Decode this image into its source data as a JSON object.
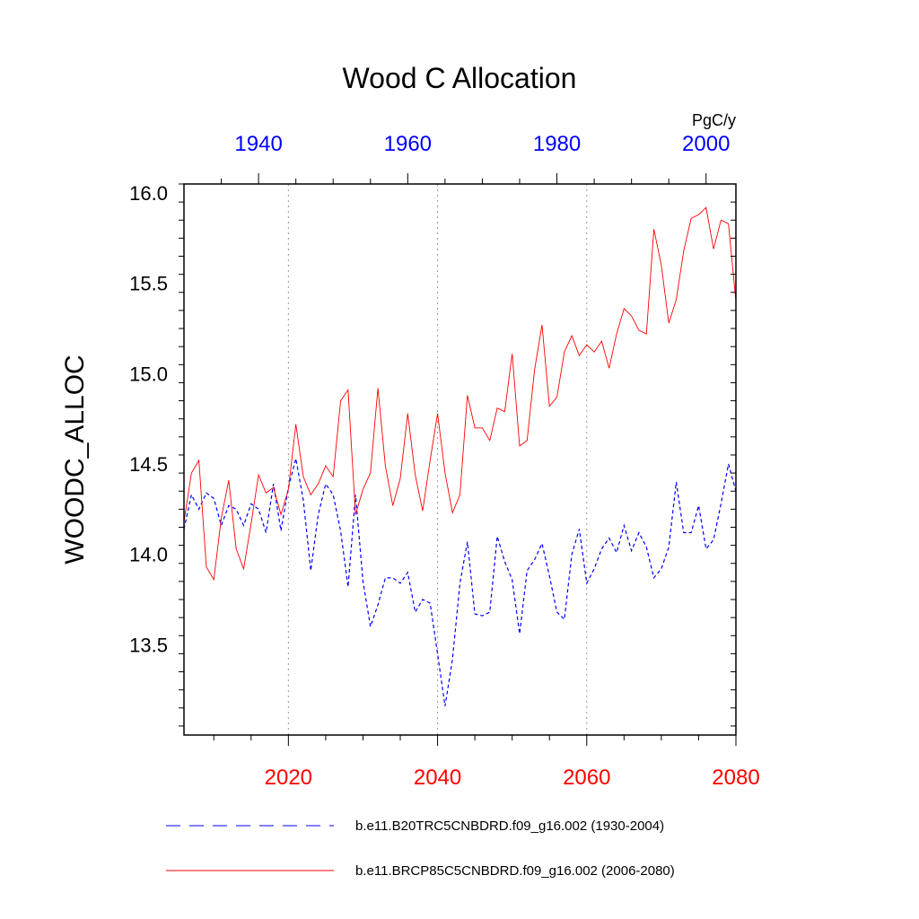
{
  "chart_data": {
    "type": "line",
    "title": "Wood C Allocation",
    "ylabel": "WOODC_ALLOC",
    "units": "PgC/y",
    "ylim": [
      13.0,
      16.05
    ],
    "yticks": [
      13.5,
      14.0,
      14.5,
      15.0,
      15.5,
      16.0
    ],
    "ytick_labels": [
      "13.5",
      "14.0",
      "14.5",
      "15.0",
      "15.5",
      "16.0"
    ],
    "bottom_axis": {
      "range": [
        2006,
        2080
      ],
      "ticks": [
        2020,
        2040,
        2060,
        2080
      ],
      "labels": [
        "2020",
        "2040",
        "2060",
        "2080"
      ],
      "color": "#ff0000"
    },
    "top_axis": {
      "range": [
        1930,
        2004
      ],
      "ticks": [
        1940,
        1960,
        1980,
        2000
      ],
      "labels": [
        "1940",
        "1960",
        "1980",
        "2000"
      ],
      "color": "#0000ff"
    },
    "grid_x": [
      2020,
      2040,
      2060
    ],
    "series": [
      {
        "name": "b.e11.B20TRC5CNBDRD.f09_g16.002 (1930-2004)",
        "axis": "top",
        "start": 1930,
        "color": "#0000ff",
        "style": "dashed",
        "values": [
          14.14,
          14.33,
          14.25,
          14.34,
          14.31,
          14.16,
          14.27,
          14.25,
          14.16,
          14.28,
          14.25,
          14.12,
          14.39,
          14.13,
          14.37,
          14.53,
          14.3,
          13.91,
          14.22,
          14.39,
          14.33,
          14.13,
          13.82,
          14.33,
          13.85,
          13.6,
          13.72,
          13.87,
          13.87,
          13.84,
          13.9,
          13.68,
          13.75,
          13.73,
          13.45,
          13.16,
          13.42,
          13.84,
          14.07,
          13.67,
          13.66,
          13.68,
          14.1,
          13.96,
          13.86,
          13.56,
          13.91,
          13.97,
          14.06,
          13.88,
          13.68,
          13.64,
          14.0,
          14.14,
          13.84,
          13.92,
          14.03,
          14.09,
          14.01,
          14.16,
          14.02,
          14.12,
          14.04,
          13.87,
          13.92,
          14.04,
          14.4,
          14.12,
          14.12,
          14.27,
          14.03,
          14.08,
          14.28,
          14.5,
          14.35
        ]
      },
      {
        "name": "b.e11.BRCP85C5CNBDRD.f09_g16.002 (2006-2080)",
        "axis": "bottom",
        "start": 2006,
        "color": "#ff0000",
        "style": "solid",
        "values": [
          14.18,
          14.45,
          14.52,
          13.93,
          13.86,
          14.2,
          14.41,
          14.03,
          13.92,
          14.17,
          14.44,
          14.34,
          14.37,
          14.22,
          14.36,
          14.72,
          14.43,
          14.33,
          14.39,
          14.49,
          14.43,
          14.85,
          14.91,
          14.22,
          14.36,
          14.45,
          14.92,
          14.49,
          14.27,
          14.42,
          14.78,
          14.44,
          14.24,
          14.52,
          14.78,
          14.45,
          14.23,
          14.33,
          14.88,
          14.7,
          14.7,
          14.63,
          14.81,
          14.79,
          15.11,
          14.6,
          14.63,
          15.02,
          15.27,
          14.82,
          14.87,
          15.12,
          15.21,
          15.1,
          15.16,
          15.12,
          15.18,
          15.03,
          15.22,
          15.36,
          15.32,
          15.24,
          15.22,
          15.8,
          15.6,
          15.28,
          15.41,
          15.68,
          15.86,
          15.88,
          15.92,
          15.69,
          15.85,
          15.83,
          15.4
        ]
      }
    ],
    "legend_position": "bottom"
  }
}
